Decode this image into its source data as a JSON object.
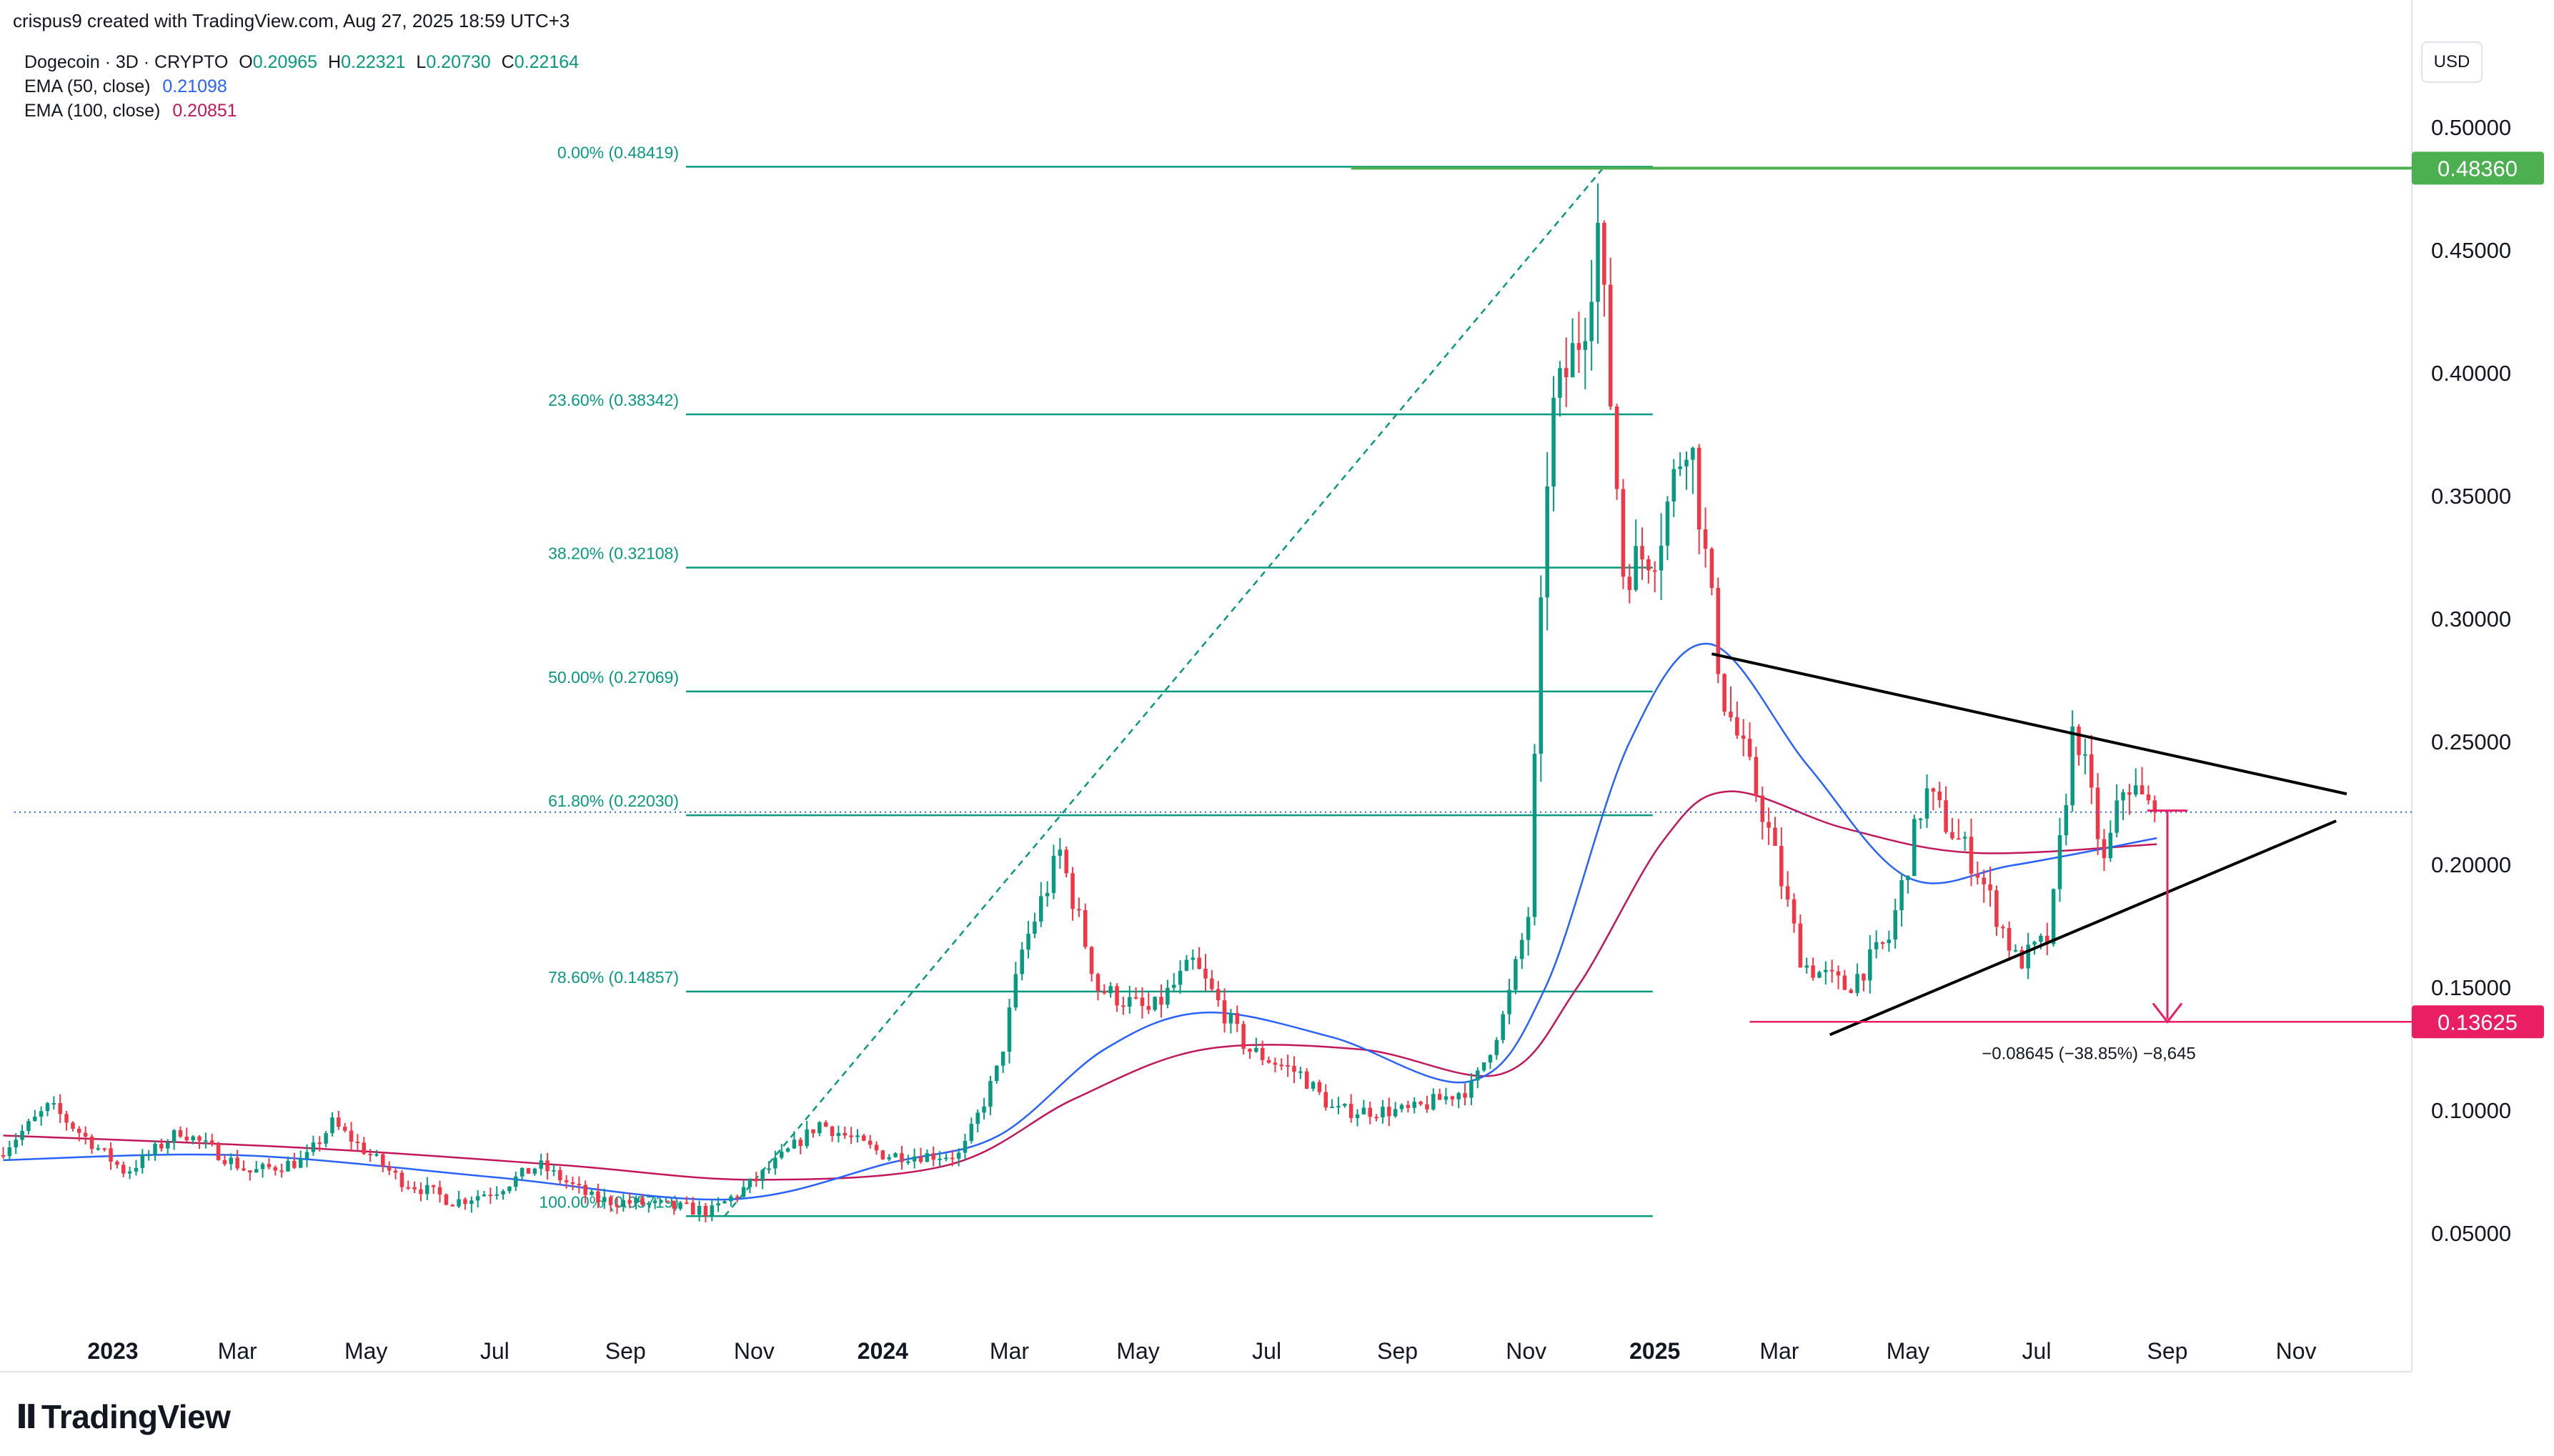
{
  "header": {
    "credit": "crispus9 created with TradingView.com, Aug 27, 2025 18:59 UTC+3",
    "currency": "USD"
  },
  "legend": {
    "symbol": "Dogecoin · 3D · CRYPTO",
    "ohlc": [
      {
        "k": "O",
        "v": "0.20965"
      },
      {
        "k": "H",
        "v": "0.22321"
      },
      {
        "k": "L",
        "v": "0.20730"
      },
      {
        "k": "C",
        "v": "0.22164"
      }
    ],
    "ema50": {
      "label": "EMA (50, close)",
      "value": "0.21098"
    },
    "ema100": {
      "label": "EMA (100, close)",
      "value": "0.20851"
    }
  },
  "brand": {
    "name": "TradingView"
  },
  "colors": {
    "up": "#089981",
    "down": "#f23645",
    "ema50": "#2962ff",
    "ema100": "#c2185b",
    "fib": "#089981",
    "target": "#e91e63",
    "high": "#4caf50"
  },
  "chart_data": {
    "type": "candlestick",
    "symbol": "Dogecoin",
    "interval": "3D",
    "y_axis": {
      "ticks": [
        "0.05000",
        "0.10000",
        "0.15000",
        "0.20000",
        "0.25000",
        "0.30000",
        "0.35000",
        "0.40000",
        "0.45000",
        "0.50000"
      ],
      "ylim": [
        0.0,
        0.52
      ]
    },
    "x_axis": {
      "ticks": [
        {
          "label": "2023",
          "date": "2023-01-01",
          "bold": true
        },
        {
          "label": "Mar",
          "date": "2023-03-01"
        },
        {
          "label": "May",
          "date": "2023-05-01"
        },
        {
          "label": "Jul",
          "date": "2023-07-01"
        },
        {
          "label": "Sep",
          "date": "2023-09-01"
        },
        {
          "label": "Nov",
          "date": "2023-11-01"
        },
        {
          "label": "2024",
          "date": "2024-01-01",
          "bold": true
        },
        {
          "label": "Mar",
          "date": "2024-03-01"
        },
        {
          "label": "May",
          "date": "2024-05-01"
        },
        {
          "label": "Jul",
          "date": "2024-07-01"
        },
        {
          "label": "Sep",
          "date": "2024-09-01"
        },
        {
          "label": "Nov",
          "date": "2024-11-01"
        },
        {
          "label": "2025",
          "date": "2025-01-01",
          "bold": true
        },
        {
          "label": "Mar",
          "date": "2025-03-01"
        },
        {
          "label": "May",
          "date": "2025-05-01"
        },
        {
          "label": "Jul",
          "date": "2025-07-01"
        },
        {
          "label": "Sep",
          "date": "2025-09-01"
        },
        {
          "label": "Nov",
          "date": "2025-11-01"
        }
      ]
    },
    "price_path": [
      {
        "date": "2022-11-10",
        "price": 0.082
      },
      {
        "date": "2022-12-05",
        "price": 0.102
      },
      {
        "date": "2023-01-10",
        "price": 0.075
      },
      {
        "date": "2023-02-05",
        "price": 0.092
      },
      {
        "date": "2023-03-10",
        "price": 0.075
      },
      {
        "date": "2023-04-05",
        "price": 0.08
      },
      {
        "date": "2023-04-18",
        "price": 0.095
      },
      {
        "date": "2023-05-20",
        "price": 0.072
      },
      {
        "date": "2023-06-15",
        "price": 0.063
      },
      {
        "date": "2023-07-05",
        "price": 0.068
      },
      {
        "date": "2023-07-25",
        "price": 0.078
      },
      {
        "date": "2023-08-20",
        "price": 0.064
      },
      {
        "date": "2023-09-15",
        "price": 0.062
      },
      {
        "date": "2023-10-15",
        "price": 0.059
      },
      {
        "date": "2023-11-05",
        "price": 0.072
      },
      {
        "date": "2023-12-05",
        "price": 0.095
      },
      {
        "date": "2024-01-05",
        "price": 0.082
      },
      {
        "date": "2024-02-10",
        "price": 0.082
      },
      {
        "date": "2024-02-28",
        "price": 0.118
      },
      {
        "date": "2024-03-10",
        "price": 0.165
      },
      {
        "date": "2024-03-28",
        "price": 0.205
      },
      {
        "date": "2024-04-15",
        "price": 0.15
      },
      {
        "date": "2024-05-10",
        "price": 0.14
      },
      {
        "date": "2024-05-30",
        "price": 0.16
      },
      {
        "date": "2024-06-25",
        "price": 0.125
      },
      {
        "date": "2024-07-20",
        "price": 0.115
      },
      {
        "date": "2024-08-05",
        "price": 0.1
      },
      {
        "date": "2024-09-10",
        "price": 0.1
      },
      {
        "date": "2024-10-10",
        "price": 0.11
      },
      {
        "date": "2024-10-25",
        "price": 0.14
      },
      {
        "date": "2024-11-05",
        "price": 0.18
      },
      {
        "date": "2024-11-15",
        "price": 0.38
      },
      {
        "date": "2024-12-01",
        "price": 0.42
      },
      {
        "date": "2024-12-08",
        "price": 0.46
      },
      {
        "date": "2024-12-20",
        "price": 0.32
      },
      {
        "date": "2025-01-05",
        "price": 0.33
      },
      {
        "date": "2025-01-20",
        "price": 0.38
      },
      {
        "date": "2025-02-05",
        "price": 0.27
      },
      {
        "date": "2025-02-25",
        "price": 0.22
      },
      {
        "date": "2025-03-15",
        "price": 0.16
      },
      {
        "date": "2025-04-05",
        "price": 0.15
      },
      {
        "date": "2025-04-25",
        "price": 0.17
      },
      {
        "date": "2025-05-12",
        "price": 0.23
      },
      {
        "date": "2025-06-05",
        "price": 0.2
      },
      {
        "date": "2025-06-25",
        "price": 0.16
      },
      {
        "date": "2025-07-10",
        "price": 0.17
      },
      {
        "date": "2025-07-22",
        "price": 0.26
      },
      {
        "date": "2025-08-05",
        "price": 0.2
      },
      {
        "date": "2025-08-15",
        "price": 0.235
      },
      {
        "date": "2025-08-27",
        "price": 0.222
      }
    ],
    "series": [
      {
        "name": "EMA (50, close)",
        "points": [
          {
            "date": "2022-11-10",
            "price": 0.08
          },
          {
            "date": "2023-03-01",
            "price": 0.082
          },
          {
            "date": "2023-07-01",
            "price": 0.073
          },
          {
            "date": "2023-10-20",
            "price": 0.064
          },
          {
            "date": "2024-01-05",
            "price": 0.079
          },
          {
            "date": "2024-02-25",
            "price": 0.09
          },
          {
            "date": "2024-04-15",
            "price": 0.125
          },
          {
            "date": "2024-06-01",
            "price": 0.14
          },
          {
            "date": "2024-08-01",
            "price": 0.13
          },
          {
            "date": "2024-10-05",
            "price": 0.112
          },
          {
            "date": "2024-11-10",
            "price": 0.15
          },
          {
            "date": "2024-12-20",
            "price": 0.25
          },
          {
            "date": "2025-01-27",
            "price": 0.29
          },
          {
            "date": "2025-03-15",
            "price": 0.24
          },
          {
            "date": "2025-05-01",
            "price": 0.195
          },
          {
            "date": "2025-06-20",
            "price": 0.2
          },
          {
            "date": "2025-08-27",
            "price": 0.211
          }
        ]
      },
      {
        "name": "EMA (100, close)",
        "points": [
          {
            "date": "2022-11-10",
            "price": 0.09
          },
          {
            "date": "2023-04-01",
            "price": 0.085
          },
          {
            "date": "2023-08-01",
            "price": 0.078
          },
          {
            "date": "2023-11-01",
            "price": 0.072
          },
          {
            "date": "2024-02-01",
            "price": 0.078
          },
          {
            "date": "2024-04-01",
            "price": 0.105
          },
          {
            "date": "2024-06-01",
            "price": 0.125
          },
          {
            "date": "2024-08-15",
            "price": 0.125
          },
          {
            "date": "2024-10-20",
            "price": 0.115
          },
          {
            "date": "2024-11-25",
            "price": 0.15
          },
          {
            "date": "2025-01-05",
            "price": 0.21
          },
          {
            "date": "2025-02-05",
            "price": 0.23
          },
          {
            "date": "2025-04-01",
            "price": 0.215
          },
          {
            "date": "2025-06-01",
            "price": 0.205
          },
          {
            "date": "2025-08-27",
            "price": 0.2085
          }
        ]
      }
    ],
    "fibonacci": {
      "levels": [
        {
          "label": "0.00% (0.48419)",
          "price": 0.48419
        },
        {
          "label": "23.60% (0.38342)",
          "price": 0.38342
        },
        {
          "label": "38.20% (0.32108)",
          "price": 0.32108
        },
        {
          "label": "50.00% (0.27069)",
          "price": 0.27069
        },
        {
          "label": "61.80% (0.22030)",
          "price": 0.2203
        },
        {
          "label": "78.60% (0.14857)",
          "price": 0.14857
        },
        {
          "label": "100.00% (0.05719)",
          "price": 0.05719
        }
      ],
      "from": {
        "date": "2023-10-18",
        "price": 0.05719
      },
      "to": {
        "date": "2024-12-08",
        "price": 0.48419
      },
      "end_date": "2024-12-31"
    },
    "triangle": {
      "upper": [
        {
          "date": "2025-01-28",
          "price": 0.286
        },
        {
          "date": "2025-11-25",
          "price": 0.229
        }
      ],
      "lower": [
        {
          "date": "2025-03-25",
          "price": 0.131
        },
        {
          "date": "2025-11-20",
          "price": 0.218
        }
      ]
    },
    "price_lines": [
      {
        "label": "0.48360",
        "price": 0.4836,
        "color": "#4caf50",
        "start_date": "2024-08-10"
      },
      {
        "label": "0.13625",
        "price": 0.13625,
        "color": "#e91e63",
        "start_date": "2025-02-15"
      }
    ],
    "current_price": 0.2216,
    "measurement": {
      "label": "−0.08645 (−38.85%) −8,645",
      "date": "2025-09-01",
      "from": 0.2222,
      "to": 0.1362
    }
  }
}
